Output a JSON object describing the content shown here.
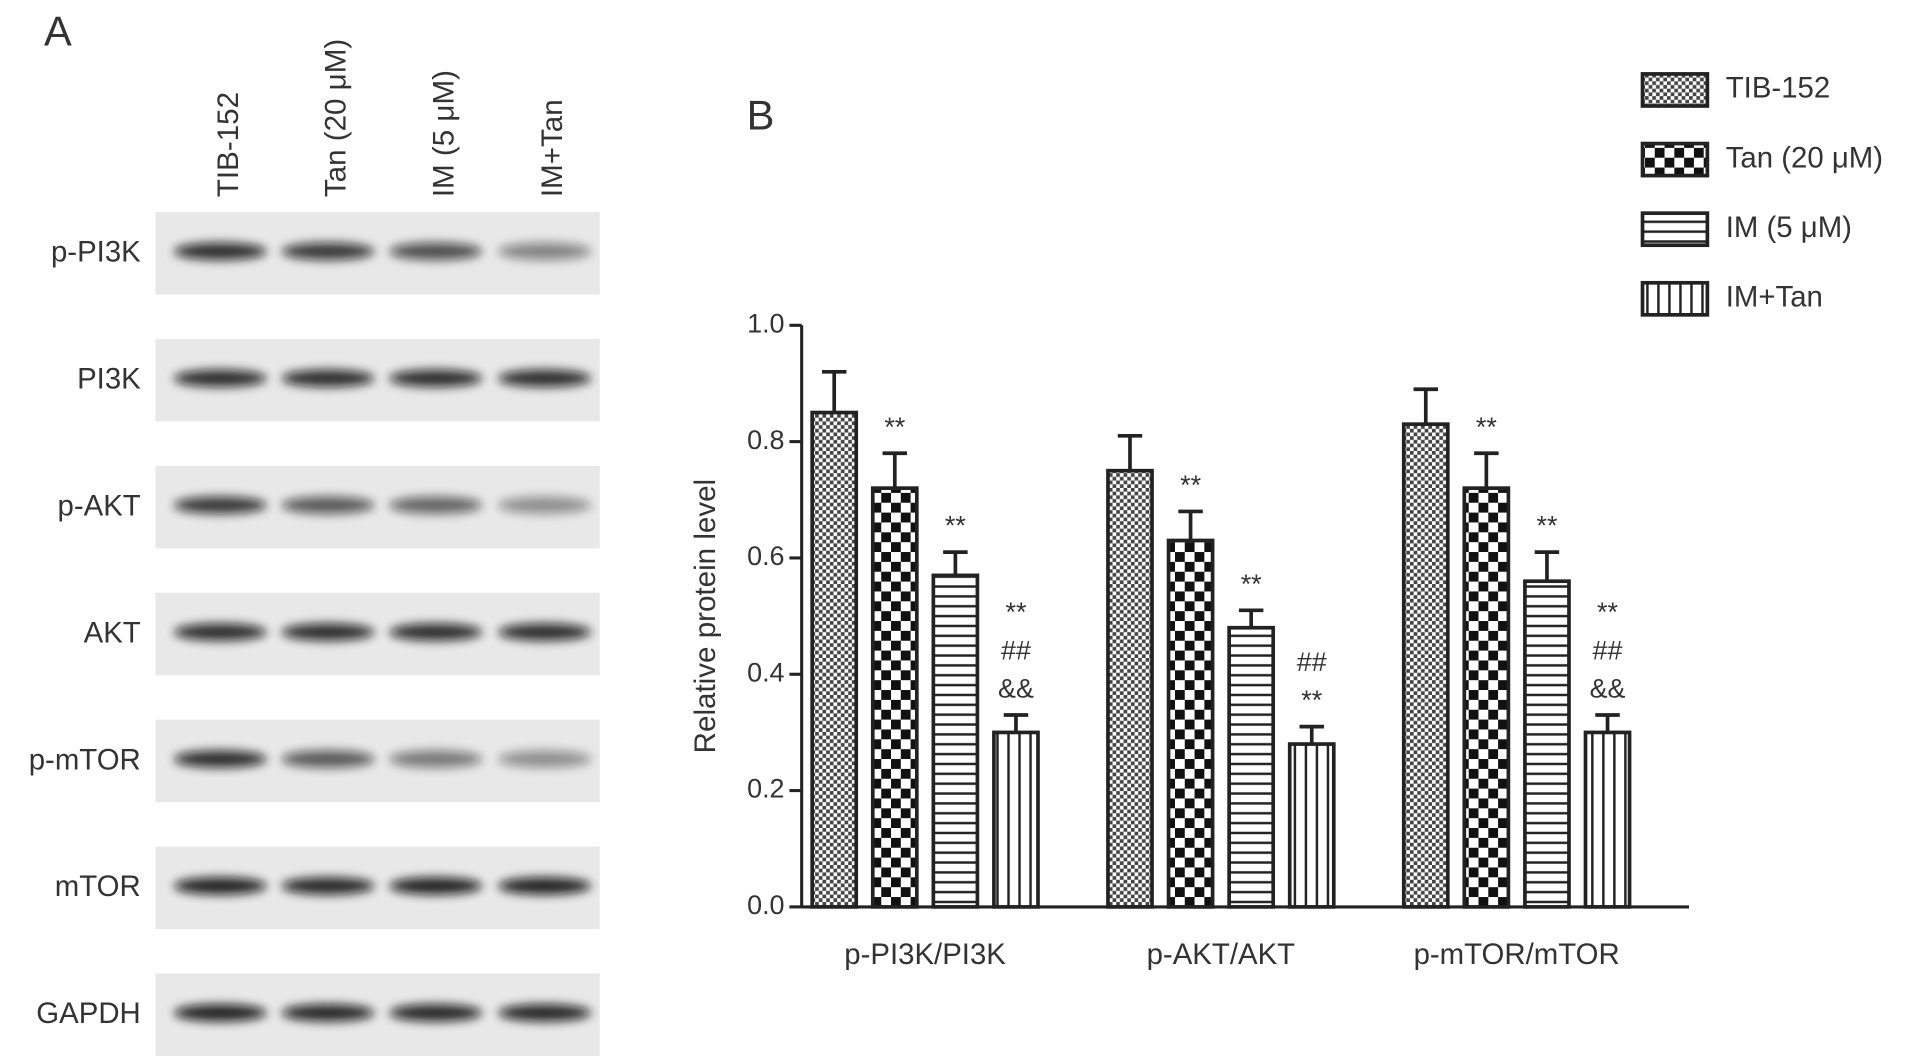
{
  "panel_a": {
    "label": "A",
    "columns": [
      "TIB-152",
      "Tan (20 μM)",
      "IM (5 μM)",
      "IM+Tan"
    ],
    "rows": [
      "p-PI3K",
      "PI3K",
      "p-AKT",
      "AKT",
      "p-mTOR",
      "mTOR",
      "GAPDH"
    ]
  },
  "chart_data": {
    "type": "bar",
    "panel_label": "B",
    "y_label": "Relative protein level",
    "categories": [
      "p-PI3K/PI3K",
      "p-AKT/AKT",
      "p-mTOR/mTOR"
    ],
    "ylim": [
      0,
      1.0
    ],
    "yticks": [
      {
        "value": 0,
        "label": "0.0"
      },
      0.2,
      0.4,
      0.6,
      0.8,
      {
        "value": 1.0,
        "label": "1.0"
      }
    ],
    "series": [
      {
        "name": "TIB-152",
        "color": "#222222",
        "pattern": "fine-checker",
        "values": [
          0.85,
          0.75,
          0.83
        ],
        "errors": [
          0.07,
          0.06,
          0.06
        ]
      },
      {
        "name": "Tan (20 μM)",
        "color": "#222222",
        "pattern": "checker",
        "values": [
          0.72,
          0.63,
          0.72
        ],
        "errors": [
          0.06,
          0.05,
          0.06
        ],
        "annotations": [
          [
            "**"
          ],
          [
            "**"
          ],
          [
            "**"
          ]
        ]
      },
      {
        "name": "IM (5 μM)",
        "color": "#222222",
        "pattern": "horizontal",
        "values": [
          0.57,
          0.48,
          0.56
        ],
        "errors": [
          0.04,
          0.03,
          0.05
        ],
        "annotations": [
          [
            "**"
          ],
          [
            "**"
          ],
          [
            "**"
          ]
        ]
      },
      {
        "name": "IM+Tan",
        "color": "#222222",
        "pattern": "vertical",
        "values": [
          0.3,
          0.28,
          0.3
        ],
        "errors": [
          0.03,
          0.03,
          0.03
        ],
        "annotations": [
          [
            "**",
            "##",
            "&&"
          ],
          [
            "##",
            "**"
          ],
          [
            "**",
            "##",
            "&&"
          ]
        ]
      }
    ]
  }
}
